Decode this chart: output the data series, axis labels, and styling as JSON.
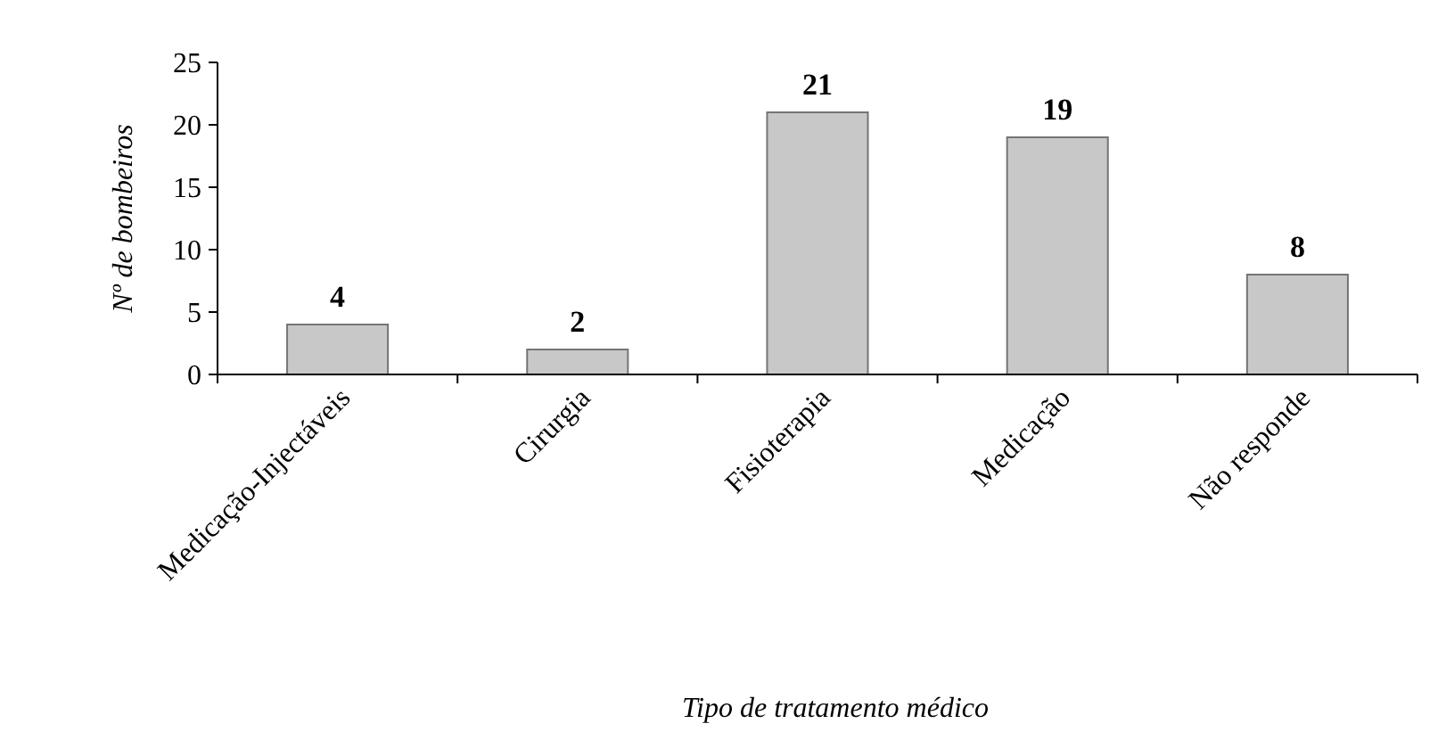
{
  "chart_data": {
    "type": "bar",
    "xlabel": "Tipo de tratamento médico",
    "ylabel": "Nº de bombeiros",
    "categories": [
      "Medicação-Injectáveis",
      "Cirurgia",
      "Fisioterapia",
      "Medicação",
      "Não responde"
    ],
    "values": [
      4,
      2,
      21,
      19,
      8
    ],
    "color": "#c8c8c8",
    "ylim": [
      0,
      25
    ],
    "yticks": [
      0,
      5,
      10,
      15,
      20,
      25
    ],
    "grid": false,
    "data_labels": true
  }
}
